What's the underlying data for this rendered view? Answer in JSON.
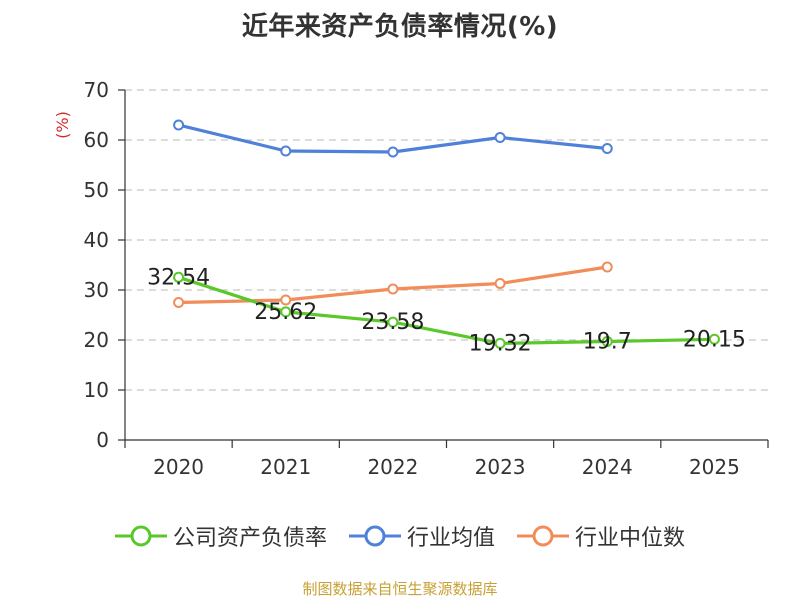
{
  "title": "近年来资产负债率情况(%)",
  "source": "制图数据来自恒生聚源数据库",
  "colors": {
    "company": "#5ac72a",
    "industry_avg": "#4f81d9",
    "industry_median": "#f28c5a",
    "ylabel": "#d42a2a"
  },
  "chart_data": {
    "type": "line",
    "categories": [
      "2020",
      "2021",
      "2022",
      "2023",
      "2024",
      "2025"
    ],
    "ylabel": "(%)",
    "ylim": [
      0,
      70
    ],
    "yticks": [
      0,
      10,
      20,
      30,
      40,
      50,
      60,
      70
    ],
    "grid": true,
    "legend_position": "bottom",
    "series": [
      {
        "name": "公司资产负债率",
        "color_key": "company",
        "values": [
          32.54,
          25.62,
          23.58,
          19.32,
          19.7,
          20.15
        ],
        "labels": [
          "32.54",
          "25.62",
          "23.58",
          "19.32",
          "19.7",
          "20.15"
        ]
      },
      {
        "name": "行业均值",
        "color_key": "industry_avg",
        "values": [
          63.0,
          57.8,
          57.6,
          60.5,
          58.3,
          null
        ]
      },
      {
        "name": "行业中位数",
        "color_key": "industry_median",
        "values": [
          27.5,
          28.0,
          30.2,
          31.3,
          34.6,
          null
        ]
      }
    ]
  }
}
